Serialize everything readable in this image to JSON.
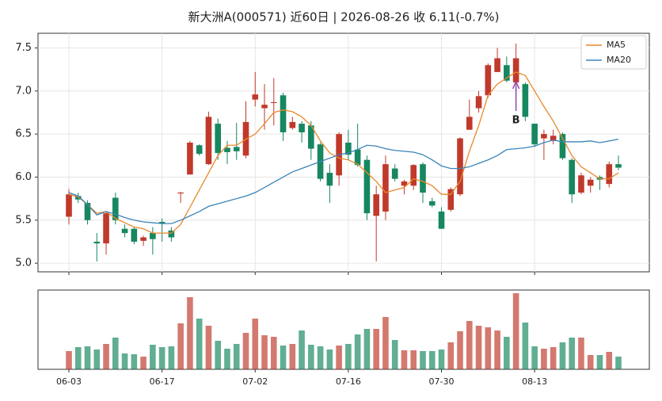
{
  "chart_data": {
    "type": "candlestick",
    "title": "新大洲A(000571) 近60日 | 2026-08-26 收 6.11(-0.7%)",
    "categories": [
      "06-03",
      null,
      null,
      null,
      null,
      null,
      null,
      null,
      null,
      null,
      "06-17",
      null,
      null,
      null,
      null,
      null,
      null,
      null,
      null,
      null,
      "07-02",
      null,
      null,
      null,
      null,
      null,
      null,
      null,
      null,
      null,
      "07-16",
      null,
      null,
      null,
      null,
      null,
      null,
      null,
      null,
      null,
      "07-30",
      null,
      null,
      null,
      null,
      null,
      null,
      null,
      null,
      null,
      "08-13",
      null,
      null,
      null,
      null,
      null,
      null,
      null,
      null,
      null
    ],
    "open": [
      5.54,
      5.78,
      5.7,
      5.25,
      5.23,
      5.76,
      5.4,
      5.4,
      5.26,
      5.35,
      5.48,
      5.38,
      5.81,
      6.03,
      6.37,
      6.15,
      6.62,
      6.34,
      6.35,
      6.25,
      6.9,
      6.8,
      6.86,
      6.95,
      6.57,
      6.62,
      6.6,
      6.38,
      6.05,
      6.02,
      6.4,
      6.32,
      6.2,
      5.55,
      5.6,
      6.1,
      5.9,
      5.9,
      6.15,
      5.72,
      5.6,
      5.62,
      5.8,
      6.55,
      6.8,
      6.95,
      7.22,
      7.3,
      7.1,
      7.08,
      6.62,
      6.45,
      6.42,
      6.5,
      6.2,
      5.82,
      5.9,
      6.0,
      5.92,
      6.15
    ],
    "high": [
      5.86,
      5.82,
      5.73,
      5.35,
      5.6,
      5.82,
      5.45,
      5.42,
      5.32,
      5.42,
      5.52,
      5.42,
      5.83,
      6.42,
      6.38,
      6.76,
      6.68,
      6.42,
      6.63,
      6.88,
      7.22,
      7.08,
      7.15,
      6.98,
      6.7,
      6.65,
      6.65,
      6.4,
      6.15,
      6.52,
      6.55,
      6.62,
      6.25,
      5.9,
      6.25,
      6.15,
      5.97,
      6.15,
      6.17,
      5.76,
      5.65,
      5.88,
      6.46,
      6.9,
      7.0,
      7.32,
      7.5,
      7.4,
      7.55,
      7.1,
      6.62,
      6.55,
      6.55,
      6.52,
      6.22,
      6.05,
      6.0,
      6.02,
      6.18,
      6.25
    ],
    "low": [
      5.45,
      5.7,
      5.45,
      5.02,
      5.1,
      5.45,
      5.3,
      5.22,
      5.2,
      5.1,
      5.25,
      5.25,
      5.7,
      6.03,
      6.25,
      6.14,
      6.2,
      6.15,
      6.2,
      6.22,
      6.82,
      6.55,
      6.6,
      6.42,
      6.55,
      6.4,
      6.2,
      5.95,
      5.7,
      5.9,
      6.2,
      6.12,
      5.5,
      5.02,
      5.5,
      5.95,
      5.8,
      5.85,
      5.7,
      5.65,
      5.4,
      5.6,
      5.78,
      6.55,
      6.75,
      6.92,
      7.22,
      7.1,
      7.05,
      6.65,
      6.35,
      6.2,
      6.38,
      6.2,
      5.7,
      5.8,
      5.82,
      5.85,
      5.88,
      6.08
    ],
    "close": [
      5.8,
      5.74,
      5.5,
      5.23,
      5.58,
      5.5,
      5.35,
      5.25,
      5.3,
      5.28,
      5.46,
      5.3,
      5.82,
      6.4,
      6.27,
      6.7,
      6.28,
      6.29,
      6.3,
      6.64,
      6.96,
      6.84,
      6.87,
      6.52,
      6.64,
      6.52,
      6.33,
      5.98,
      5.9,
      6.5,
      6.26,
      6.14,
      5.58,
      5.8,
      6.15,
      5.98,
      5.95,
      6.14,
      5.82,
      5.67,
      5.4,
      5.86,
      6.45,
      6.7,
      6.94,
      7.3,
      7.38,
      7.12,
      7.38,
      6.7,
      6.38,
      6.5,
      6.48,
      6.22,
      5.8,
      6.02,
      5.97,
      5.97,
      6.15,
      6.11
    ],
    "up_color": "#c0392b",
    "down_color": "#16875f",
    "series": [
      {
        "name": "MA5",
        "color": "#e8892b",
        "values": [
          5.8,
          5.77,
          5.68,
          5.58,
          5.6,
          5.52,
          5.47,
          5.42,
          5.4,
          5.35,
          5.35,
          5.35,
          5.45,
          5.65,
          5.85,
          6.05,
          6.25,
          6.37,
          6.37,
          6.44,
          6.5,
          6.62,
          6.75,
          6.78,
          6.76,
          6.7,
          6.6,
          6.42,
          6.28,
          6.22,
          6.2,
          6.15,
          6.05,
          5.95,
          5.82,
          5.85,
          5.88,
          5.98,
          5.95,
          5.9,
          5.8,
          5.8,
          5.95,
          6.3,
          6.6,
          6.95,
          7.08,
          7.15,
          7.22,
          7.18,
          7.0,
          6.82,
          6.65,
          6.45,
          6.25,
          6.12,
          6.05,
          5.98,
          5.98,
          6.05
        ]
      },
      {
        "name": "MA20",
        "color": "#3a84b8",
        "values": [
          5.82,
          5.78,
          5.68,
          5.56,
          5.6,
          5.57,
          5.53,
          5.5,
          5.48,
          5.47,
          5.46,
          5.46,
          5.5,
          5.55,
          5.6,
          5.66,
          5.69,
          5.72,
          5.75,
          5.78,
          5.82,
          5.88,
          5.94,
          6.0,
          6.06,
          6.1,
          6.14,
          6.18,
          6.22,
          6.26,
          6.28,
          6.32,
          6.37,
          6.36,
          6.33,
          6.31,
          6.3,
          6.29,
          6.26,
          6.2,
          6.13,
          6.1,
          6.1,
          6.12,
          6.16,
          6.2,
          6.25,
          6.32,
          6.33,
          6.34,
          6.36,
          6.4,
          6.43,
          6.41,
          6.41,
          6.41,
          6.42,
          6.4,
          6.42,
          6.44
        ]
      }
    ],
    "volume": [
      23,
      28,
      29,
      25,
      32,
      40,
      20,
      19,
      16,
      31,
      28,
      29,
      58,
      91,
      64,
      55,
      36,
      26,
      32,
      46,
      64,
      43,
      41,
      30,
      32,
      49,
      31,
      29,
      25,
      30,
      32,
      44,
      51,
      51,
      66,
      37,
      24,
      24,
      23,
      23,
      25,
      34,
      48,
      61,
      55,
      53,
      49,
      41,
      96,
      59,
      29,
      26,
      28,
      34,
      40,
      40,
      18,
      18,
      22,
      16
    ],
    "volume_ylim": [
      0,
      100
    ],
    "ylim": [
      4.9,
      7.67
    ],
    "yticks": [
      {
        "value": 5.0,
        "label": "5.0"
      },
      5.5,
      {
        "value": 6.0,
        "label": "6.0"
      },
      6.5,
      {
        "value": 7.0,
        "label": "7.0"
      },
      7.5
    ],
    "grid": true,
    "legend": "upper right",
    "annotation": "B",
    "annotation_color": "#8e44ad"
  }
}
